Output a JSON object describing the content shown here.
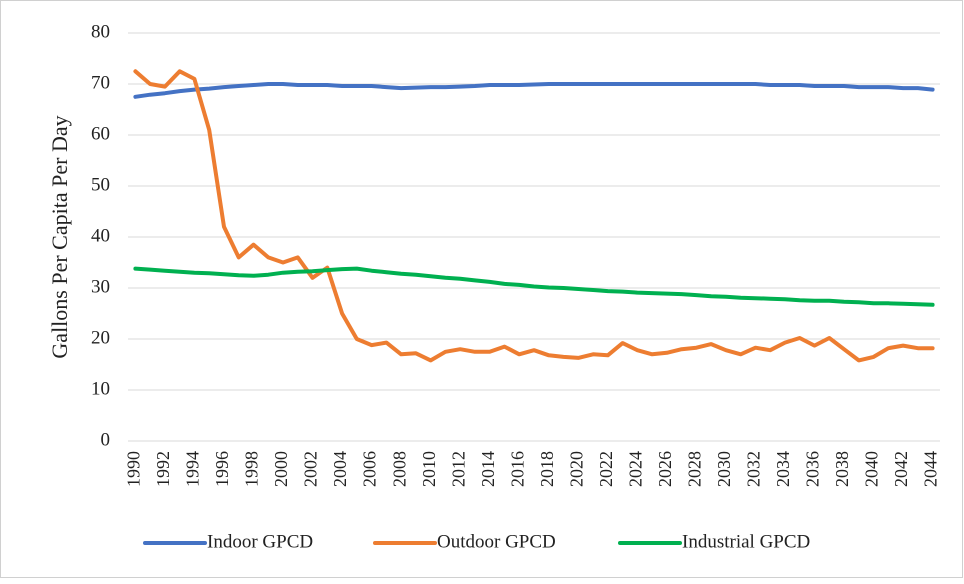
{
  "chart_data": {
    "type": "line",
    "ylabel": "Gallons Per Capita Per Day",
    "categories": [
      "1990",
      null,
      "1992",
      null,
      "1994",
      null,
      "1996",
      null,
      "1998",
      null,
      "2000",
      null,
      "2002",
      null,
      "2004",
      null,
      "2006",
      null,
      "2008",
      null,
      "2010",
      null,
      "2012",
      null,
      "2014",
      null,
      "2016",
      null,
      "2018",
      null,
      "2020",
      null,
      "2022",
      null,
      "2024",
      null,
      "2026",
      null,
      "2028",
      null,
      "2030",
      null,
      "2032",
      null,
      "2034",
      null,
      "2036",
      null,
      "2038",
      null,
      "2040",
      null,
      "2042",
      null,
      "2044"
    ],
    "series": [
      {
        "name": "Indoor GPCD",
        "color": "#4472c4",
        "values": [
          67.5,
          67.9,
          68.2,
          68.6,
          68.9,
          69.1,
          69.4,
          69.6,
          69.8,
          70.0,
          70.0,
          69.8,
          69.8,
          69.8,
          69.6,
          69.6,
          69.6,
          69.4,
          69.2,
          69.3,
          69.4,
          69.4,
          69.5,
          69.6,
          69.8,
          69.8,
          69.8,
          69.9,
          70.0,
          70.0,
          70.0,
          70.0,
          70.0,
          70.0,
          70.0,
          70.0,
          70.0,
          70.0,
          70.0,
          70.0,
          70.0,
          70.0,
          70.0,
          69.8,
          69.8,
          69.8,
          69.6,
          69.6,
          69.6,
          69.4,
          69.4,
          69.4,
          69.2,
          69.2,
          68.9
        ]
      },
      {
        "name": "Outdoor GPCD",
        "color": "#ed7d31",
        "values": [
          72.5,
          70,
          69.5,
          72.5,
          71,
          61,
          42,
          36,
          38.5,
          36,
          35,
          36,
          32,
          34,
          25,
          20,
          18.8,
          19.3,
          17,
          17.2,
          15.8,
          17.5,
          18,
          17.5,
          17.5,
          18.5,
          17,
          17.8,
          16.8,
          16.5,
          16.3,
          17,
          16.8,
          19.2,
          17.8,
          17,
          17.3,
          18,
          18.3,
          19,
          17.8,
          17,
          18.3,
          17.8,
          19.3,
          20.2,
          18.7,
          20.2,
          18,
          15.8,
          16.5,
          18.2,
          18.7,
          18.2,
          18.2
        ]
      },
      {
        "name": "Industrial GPCD",
        "color": "#00b050",
        "values": [
          33.8,
          33.6,
          33.4,
          33.2,
          33.0,
          32.9,
          32.7,
          32.5,
          32.4,
          32.6,
          33.0,
          33.2,
          33.3,
          33.5,
          33.7,
          33.8,
          33.4,
          33.1,
          32.8,
          32.6,
          32.3,
          32.0,
          31.8,
          31.5,
          31.2,
          30.8,
          30.6,
          30.3,
          30.1,
          30.0,
          29.8,
          29.6,
          29.4,
          29.3,
          29.1,
          29.0,
          28.9,
          28.8,
          28.6,
          28.4,
          28.3,
          28.1,
          28.0,
          27.9,
          27.8,
          27.6,
          27.5,
          27.5,
          27.3,
          27.2,
          27.0,
          27.0,
          26.9,
          26.8,
          26.7
        ]
      }
    ],
    "ylim": [
      0,
      80
    ],
    "yticks": [
      0,
      10,
      20,
      30,
      40,
      50,
      60,
      70,
      80
    ],
    "grid": true,
    "legend": "bottom"
  }
}
